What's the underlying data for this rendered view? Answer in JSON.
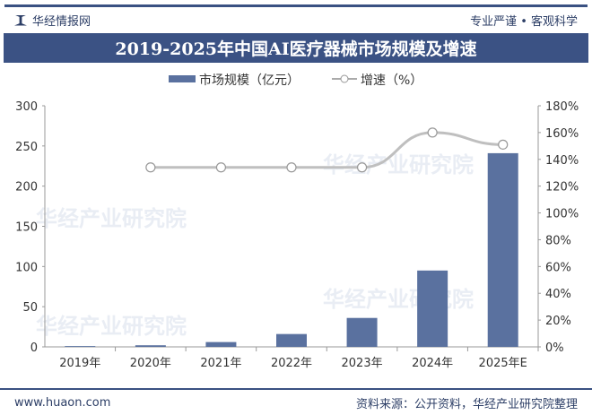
{
  "header": {
    "brand": "华经情报网",
    "slogan": "专业严谨 • 客观科学"
  },
  "footer": {
    "url": "www.huaon.com",
    "source": "资料来源：公开资料，华经产业研究院整理"
  },
  "watermark": "华经产业研究院",
  "colors": {
    "bar": "#5a719f",
    "line": "#bfbfbf",
    "title_bg": "#3b5284"
  },
  "chart_data": {
    "type": "bar+line",
    "title": "2019-2025年中国AI医疗器械市场规模及增速",
    "categories": [
      "2019年",
      "2020年",
      "2021年",
      "2022年",
      "2023年",
      "2024年",
      "2025年E"
    ],
    "series": [
      {
        "name": "市场规模（亿元）",
        "type": "bar",
        "axis": "left",
        "values": [
          1,
          2,
          6,
          16,
          36,
          95,
          241
        ]
      },
      {
        "name": "增速（%）",
        "type": "line",
        "axis": "right",
        "values": [
          null,
          134,
          134,
          134,
          134,
          160,
          151
        ]
      }
    ],
    "y_left": {
      "range": [
        0,
        300
      ],
      "ticks": [
        "0",
        "50",
        "100",
        "150",
        "200",
        "250",
        "300"
      ]
    },
    "y_right": {
      "range": [
        0,
        180
      ],
      "ticks": [
        "0%",
        "20%",
        "40%",
        "60%",
        "80%",
        "100%",
        "120%",
        "140%",
        "160%",
        "180%"
      ]
    },
    "legend": "top-center",
    "grid": false
  }
}
